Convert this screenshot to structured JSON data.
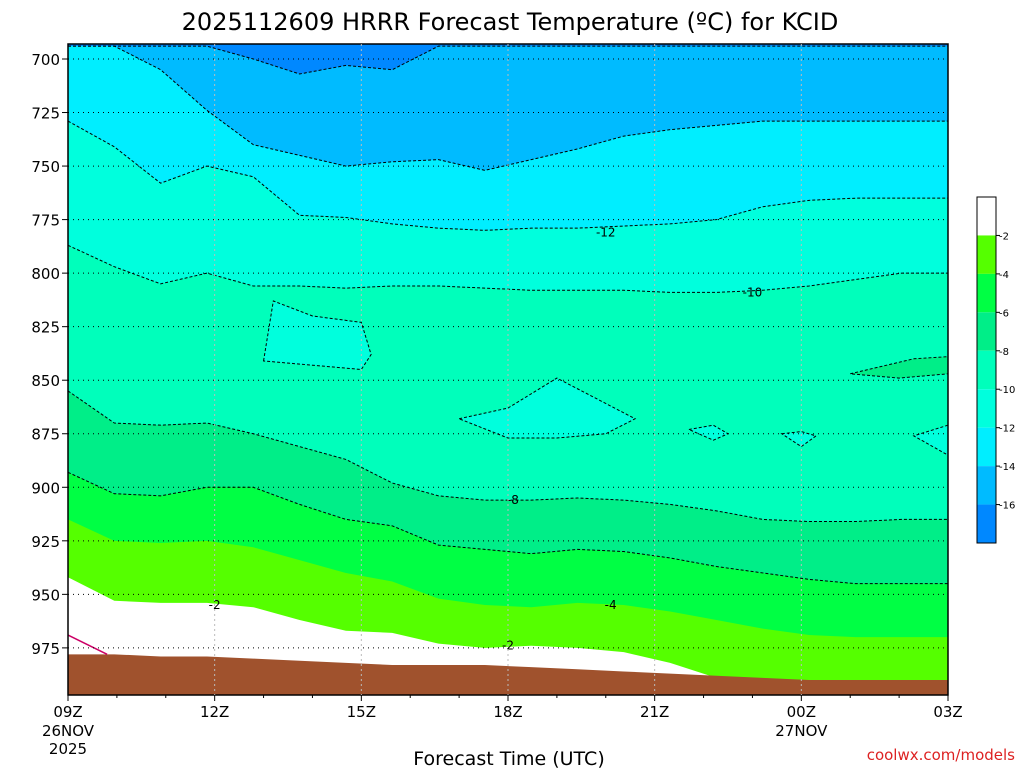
{
  "chart_data": {
    "type": "heatmap",
    "title": "2025112609 HRRR Forecast Temperature (ºC) for KCID",
    "xlabel": "Forecast Time (UTC)",
    "credit": "coolwx.com/models",
    "x_ticks": [
      {
        "hour": 0,
        "label": "09Z",
        "line2": "26NOV",
        "line3": "2025"
      },
      {
        "hour": 3,
        "label": "12Z",
        "line2": "",
        "line3": ""
      },
      {
        "hour": 6,
        "label": "15Z",
        "line2": "",
        "line3": ""
      },
      {
        "hour": 9,
        "label": "18Z",
        "line2": "",
        "line3": ""
      },
      {
        "hour": 12,
        "label": "21Z",
        "line2": "",
        "line3": ""
      },
      {
        "hour": 15,
        "label": "00Z",
        "line2": "27NOV",
        "line3": ""
      },
      {
        "hour": 18,
        "label": "03Z",
        "line2": "",
        "line3": ""
      }
    ],
    "xlim_hours": [
      0,
      18
    ],
    "y_ticks": [
      700,
      725,
      750,
      775,
      800,
      825,
      850,
      875,
      900,
      925,
      950,
      975
    ],
    "ylim_hpa": [
      693,
      997
    ],
    "colorbar": {
      "ticks": [
        "-2",
        "-4",
        "-6",
        "-8",
        "-10",
        "-12",
        "-14",
        "-16"
      ],
      "colors": [
        "#ffffff",
        "#55ff00",
        "#00ff44",
        "#00ee88",
        "#00ffbb",
        "#00ffdd",
        "#00eeff",
        "#00bbff",
        "#0088ff"
      ]
    },
    "bands": [
      {
        "level": -14,
        "color": "#00bbff",
        "pressures": [
          694,
          694,
          694,
          694,
          700,
          707,
          703,
          705,
          694,
          694,
          694,
          694,
          694,
          694,
          694,
          694,
          694,
          694,
          694,
          694
        ]
      },
      {
        "level": -12,
        "color": "#00eeff",
        "pressures": [
          694,
          694,
          705,
          724,
          740,
          745,
          750,
          748,
          747,
          752,
          747,
          742,
          736,
          733,
          731,
          729,
          729,
          729,
          729,
          729
        ]
      },
      {
        "level": -10,
        "color": "#00ffdd",
        "pressures": [
          729,
          741,
          758,
          750,
          755,
          773,
          774,
          777,
          779,
          780,
          779,
          779,
          778,
          777,
          775,
          769,
          766,
          765,
          765,
          765
        ]
      },
      {
        "level": -8,
        "color": "#00ffbb",
        "pressures": [
          787,
          797,
          805,
          800,
          806,
          806,
          807,
          806,
          806,
          807,
          808,
          808,
          808,
          809,
          809,
          808,
          806,
          803,
          800,
          800
        ]
      },
      {
        "level": -6,
        "color": "#00ee88",
        "pressures": [
          855,
          870,
          871,
          870,
          875,
          881,
          887,
          898,
          904,
          906,
          906,
          905,
          906,
          908,
          911,
          915,
          916,
          916,
          915,
          915
        ]
      },
      {
        "level": -4,
        "color": "#00ff44",
        "pressures": [
          893,
          903,
          904,
          900,
          900,
          908,
          915,
          918,
          927,
          929,
          931,
          929,
          930,
          933,
          937,
          940,
          943,
          945,
          945,
          945
        ]
      },
      {
        "level": -2,
        "color": "#55ff00",
        "pressures": [
          915,
          925,
          926,
          925,
          928,
          934,
          940,
          944,
          952,
          955,
          956,
          954,
          955,
          958,
          962,
          966,
          969,
          970,
          970,
          970
        ]
      },
      {
        "level": 0,
        "color": "#ffffff",
        "pressures": [
          942,
          953,
          954,
          954,
          956,
          962,
          967,
          968,
          973,
          975,
          974,
          975,
          977,
          982,
          989,
          997,
          997,
          997,
          997,
          997
        ]
      }
    ],
    "ground_pressure": [
      978,
      978,
      979,
      979,
      980,
      981,
      982,
      983,
      983,
      983,
      984,
      985,
      986,
      987,
      988,
      989,
      990,
      990,
      990,
      990
    ],
    "islands": [
      {
        "level": -10,
        "hours": [
          4,
          4.2,
          5,
          6,
          6.2,
          6.0,
          5,
          4
        ],
        "pressures": [
          841,
          813,
          820,
          823,
          838,
          845,
          843,
          841
        ]
      },
      {
        "level": -10,
        "hours": [
          8,
          9,
          10,
          11.6,
          11,
          10,
          9,
          8
        ],
        "pressures": [
          868,
          863,
          849,
          868,
          875,
          877,
          877,
          868
        ]
      },
      {
        "level": -10,
        "hours": [
          12.7,
          13.2,
          13.5,
          13.2,
          12.7
        ],
        "pressures": [
          873,
          871,
          875,
          878,
          873
        ]
      },
      {
        "level": -10,
        "hours": [
          14.6,
          15.0,
          15.3,
          15.0,
          14.6
        ],
        "pressures": [
          875,
          874,
          876,
          881,
          875
        ]
      },
      {
        "level": -10,
        "hours": [
          18,
          17.3,
          18,
          18
        ],
        "pressures": [
          871,
          876,
          885,
          871
        ]
      },
      {
        "level": -8,
        "hours": [
          16,
          17.3,
          18,
          18,
          17.0,
          16
        ],
        "pressures": [
          847,
          840,
          839,
          847,
          849,
          847
        ]
      }
    ],
    "contour_labels": [
      {
        "text": "-12",
        "hour": 11.0,
        "pressure": 781
      },
      {
        "text": "-10",
        "hour": 14.0,
        "pressure": 809
      },
      {
        "text": "-8",
        "hour": 9.1,
        "pressure": 906
      },
      {
        "text": "-4",
        "hour": 11.1,
        "pressure": 955
      },
      {
        "text": "-2",
        "hour": 3.0,
        "pressure": 955
      },
      {
        "text": "-2",
        "hour": 9.0,
        "pressure": 974
      }
    ]
  }
}
